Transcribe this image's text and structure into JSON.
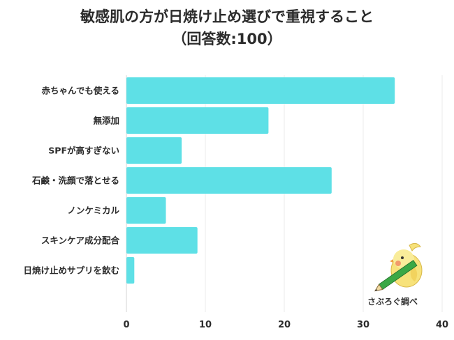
{
  "chart_data": {
    "type": "bar",
    "orientation": "horizontal",
    "title": "敏感肌の方が日焼け止め選びで重視すること",
    "subtitle": "（回答数:100）",
    "categories": [
      "赤ちゃんでも使える",
      "無添加",
      "SPFが高すぎない",
      "石鹸・洗顔で落とせる",
      "ノンケミカル",
      "スキンケア成分配合",
      "日焼け止めサプリを飲む"
    ],
    "values": [
      34,
      18,
      7,
      26,
      5,
      9,
      1
    ],
    "xlim": [
      0,
      40
    ],
    "xticks": [
      0,
      10,
      20,
      30,
      40
    ],
    "grid": true,
    "bar_color": "#5ee0e6"
  },
  "logo": {
    "text": "さぶろぐ調べ"
  }
}
